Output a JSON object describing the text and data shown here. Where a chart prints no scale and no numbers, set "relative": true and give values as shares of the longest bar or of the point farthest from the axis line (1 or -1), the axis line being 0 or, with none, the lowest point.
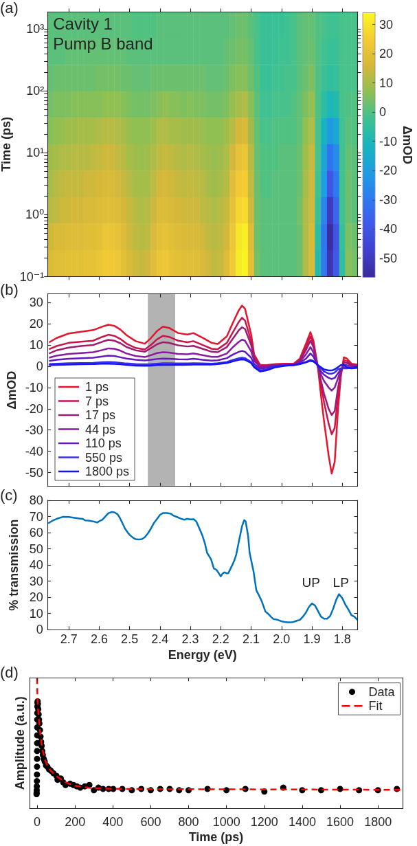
{
  "chart_data": [
    {
      "type": "heatmap",
      "title": "(a)",
      "ylabel": "Time (ps)",
      "clabel": "ΔmOD",
      "annotations": [
        "Cavity 1",
        "Pump B band"
      ],
      "x": [
        2.76,
        2.74,
        2.72,
        2.7,
        2.68,
        2.66,
        2.64,
        2.62,
        2.6,
        2.58,
        2.56,
        2.54,
        2.52,
        2.5,
        2.48,
        2.46,
        2.44,
        2.42,
        2.4,
        2.38,
        2.36,
        2.34,
        2.32,
        2.3,
        2.28,
        2.26,
        2.24,
        2.22,
        2.2,
        2.18,
        2.16,
        2.14,
        2.12,
        2.1,
        2.08,
        2.06,
        2.04,
        2.02,
        2.0,
        1.98,
        1.96,
        1.94,
        1.92,
        1.9,
        1.88,
        1.86,
        1.84,
        1.82,
        1.8,
        1.78,
        1.76
      ],
      "cells": [
        [
          1,
          1,
          1,
          1,
          1,
          1,
          1,
          1,
          1,
          1,
          1,
          1,
          1,
          1,
          0,
          0,
          0,
          0,
          1,
          1,
          1,
          1,
          1,
          1,
          1,
          1,
          1,
          1,
          1,
          1,
          2,
          3,
          3,
          1,
          -1,
          -3,
          -3,
          -3,
          -3,
          -2,
          -1,
          1,
          2,
          2,
          0,
          -1,
          -2,
          -2,
          -1,
          -1,
          -1
        ],
        [
          1,
          1,
          1,
          2,
          2,
          2,
          2,
          2,
          2,
          2,
          2,
          2,
          2,
          1,
          1,
          1,
          1,
          1,
          1,
          1,
          1,
          1,
          1,
          1,
          1,
          1,
          1,
          1,
          1,
          2,
          3,
          4,
          4,
          2,
          -1,
          -3,
          -3,
          -3,
          -2,
          -2,
          -1,
          1,
          2,
          3,
          0,
          -2,
          -3,
          -3,
          -1,
          -1,
          -1
        ],
        [
          2,
          3,
          3,
          3,
          3,
          3,
          3,
          3,
          4,
          4,
          4,
          4,
          3,
          3,
          2,
          2,
          2,
          3,
          3,
          3,
          3,
          3,
          3,
          3,
          3,
          3,
          2,
          2,
          2,
          3,
          5,
          6,
          6,
          3,
          0,
          -3,
          -3,
          -2,
          -2,
          -1,
          -1,
          1,
          3,
          5,
          0,
          -3,
          -5,
          -4,
          -1,
          -1,
          -1
        ],
        [
          4,
          5,
          5,
          5,
          6,
          6,
          6,
          6,
          6,
          7,
          7,
          7,
          6,
          5,
          4,
          4,
          4,
          5,
          6,
          7,
          6,
          6,
          5,
          6,
          5,
          5,
          4,
          4,
          4,
          5,
          8,
          10,
          11,
          6,
          1,
          -2,
          -2,
          -1,
          -1,
          -1,
          0,
          2,
          5,
          8,
          0,
          -6,
          -10,
          -8,
          -1,
          0,
          0
        ],
        [
          6,
          7,
          8,
          9,
          9,
          10,
          10,
          10,
          11,
          12,
          12,
          11,
          10,
          8,
          7,
          7,
          7,
          9,
          11,
          11,
          10,
          10,
          9,
          9,
          9,
          8,
          7,
          7,
          7,
          9,
          12,
          16,
          17,
          9,
          2,
          -1,
          -1,
          0,
          0,
          0,
          0,
          2,
          7,
          11,
          -1,
          -12,
          -21,
          -17,
          -2,
          1,
          0
        ],
        [
          9,
          10,
          11,
          11,
          12,
          12,
          12,
          13,
          14,
          15,
          15,
          14,
          12,
          10,
          9,
          8,
          9,
          11,
          13,
          14,
          13,
          12,
          11,
          12,
          11,
          10,
          9,
          8,
          9,
          11,
          16,
          21,
          22,
          12,
          2,
          0,
          0,
          0,
          1,
          1,
          1,
          3,
          9,
          14,
          -1,
          -17,
          -31,
          -25,
          -2,
          2,
          1
        ],
        [
          10,
          12,
          13,
          14,
          14,
          14,
          15,
          15,
          16,
          17,
          17,
          16,
          14,
          12,
          10,
          10,
          10,
          13,
          16,
          16,
          15,
          14,
          13,
          14,
          13,
          12,
          10,
          9,
          10,
          12,
          19,
          24,
          25,
          13,
          3,
          0,
          0,
          1,
          1,
          1,
          1,
          3,
          10,
          15,
          -2,
          -20,
          -40,
          -30,
          -2,
          3,
          1
        ],
        [
          12,
          13,
          15,
          15,
          16,
          16,
          17,
          17,
          18,
          19,
          19,
          18,
          16,
          14,
          12,
          11,
          12,
          15,
          18,
          18,
          17,
          16,
          15,
          15,
          15,
          13,
          12,
          11,
          12,
          14,
          21,
          27,
          28,
          15,
          3,
          1,
          1,
          1,
          1,
          1,
          1,
          4,
          11,
          15,
          -3,
          -27,
          -50,
          -35,
          -2,
          3,
          1
        ],
        [
          15,
          17,
          17,
          18,
          18,
          18,
          19,
          19,
          20,
          22,
          22,
          21,
          18,
          15,
          13,
          12,
          13,
          17,
          20,
          21,
          19,
          18,
          17,
          17,
          17,
          15,
          13,
          12,
          13,
          16,
          23,
          30,
          32,
          18,
          3,
          1,
          1,
          1,
          1,
          1,
          1,
          3,
          11,
          17,
          -6,
          -30,
          -55,
          -40,
          -4,
          5,
          3
        ],
        [
          18,
          19,
          19,
          20,
          20,
          20,
          21,
          21,
          22,
          24,
          24,
          23,
          20,
          17,
          15,
          14,
          15,
          19,
          22,
          23,
          21,
          20,
          19,
          19,
          19,
          17,
          15,
          13,
          14,
          18,
          24,
          31,
          33,
          20,
          4,
          1,
          1,
          1,
          1,
          1,
          1,
          3,
          11,
          17,
          -8,
          -30,
          -52,
          -38,
          -5,
          6,
          4
        ]
      ],
      "clim": [
        -56.5,
        34
      ],
      "cticks": [
        -50,
        -40,
        -30,
        -20,
        -10,
        0,
        10,
        20,
        30
      ],
      "xlim": [
        2.77,
        1.75
      ],
      "xticks": [
        2.7,
        2.6,
        2.5,
        2.4,
        2.3,
        2.2,
        2.1,
        2.0,
        1.9,
        1.8
      ],
      "ylim": [
        0.1,
        1900
      ],
      "yticks": [
        {
          "value": 0.1,
          "label": "10⁻¹"
        },
        {
          "value": 0.2,
          "label": null
        },
        {
          "value": 0.3,
          "label": null
        },
        {
          "value": 0.4,
          "label": null
        },
        {
          "value": 0.5,
          "label": null
        },
        {
          "value": 0.6,
          "label": null
        },
        {
          "value": 0.7,
          "label": null
        },
        {
          "value": 0.8,
          "label": null
        },
        {
          "value": 0.9,
          "label": null
        },
        {
          "value": 1,
          "label": "10⁰"
        },
        {
          "value": 2,
          "label": null
        },
        {
          "value": 3,
          "label": null
        },
        {
          "value": 4,
          "label": null
        },
        {
          "value": 5,
          "label": null
        },
        {
          "value": 6,
          "label": null
        },
        {
          "value": 7,
          "label": null
        },
        {
          "value": 8,
          "label": null
        },
        {
          "value": 9,
          "label": null
        },
        {
          "value": 10,
          "label": "10¹"
        },
        {
          "value": 20,
          "label": null
        },
        {
          "value": 30,
          "label": null
        },
        {
          "value": 40,
          "label": null
        },
        {
          "value": 50,
          "label": null
        },
        {
          "value": 60,
          "label": null
        },
        {
          "value": 70,
          "label": null
        },
        {
          "value": 80,
          "label": null
        },
        {
          "value": 90,
          "label": null
        },
        {
          "value": 100,
          "label": "10²"
        },
        {
          "value": 200,
          "label": null
        },
        {
          "value": 300,
          "label": null
        },
        {
          "value": 400,
          "label": null
        },
        {
          "value": 500,
          "label": null
        },
        {
          "value": 600,
          "label": null
        },
        {
          "value": 700,
          "label": null
        },
        {
          "value": 800,
          "label": null
        },
        {
          "value": 900,
          "label": null
        },
        {
          "value": 1000,
          "label": "10³"
        }
      ],
      "log": "y",
      "tick_labels": "y"
    },
    {
      "type": "line",
      "title": "(b)",
      "ylabel": "ΔmOD",
      "x": [
        2.765,
        2.74,
        2.7,
        2.66,
        2.62,
        2.59,
        2.57,
        2.55,
        2.53,
        2.51,
        2.48,
        2.45,
        2.43,
        2.41,
        2.39,
        2.37,
        2.34,
        2.31,
        2.29,
        2.26,
        2.23,
        2.21,
        2.18,
        2.16,
        2.14,
        2.13,
        2.12,
        2.1,
        2.09,
        2.07,
        2.05,
        2.02,
        1.99,
        1.96,
        1.94,
        1.92,
        1.905,
        1.895,
        1.88,
        1.87,
        1.86,
        1.845,
        1.835,
        1.825,
        1.815,
        1.805,
        1.795,
        1.785,
        1.77,
        1.75
      ],
      "series": [
        {
          "name": "1 ps",
          "color": "#e3162d",
          "values": [
            11.2,
            13.3,
            15.4,
            16.2,
            17.0,
            18.6,
            19.5,
            19.0,
            17.2,
            14.6,
            11.8,
            10.6,
            13.2,
            16.5,
            18.6,
            18.0,
            15.6,
            14.9,
            15.6,
            13.4,
            11.0,
            10.5,
            14.0,
            20.5,
            26.5,
            28.5,
            27.0,
            15.0,
            5.5,
            0.5,
            0.5,
            1.0,
            1.2,
            1.2,
            3.5,
            10.5,
            16.0,
            12.0,
            -1.0,
            -14,
            -26,
            -42,
            -50.5,
            -45,
            -22,
            -5,
            4.2,
            3.6,
            1.2,
            0.8
          ]
        },
        {
          "name": "7 ps",
          "color": "#c8154c",
          "values": [
            8.0,
            9.5,
            11.0,
            11.5,
            12.0,
            13.8,
            14.8,
            14.3,
            12.8,
            10.6,
            8.6,
            7.9,
            10.0,
            12.6,
            14.3,
            13.8,
            12.0,
            11.3,
            11.8,
            10.0,
            8.2,
            8.0,
            11.0,
            16.0,
            21.0,
            22.8,
            21.5,
            12.0,
            4.5,
            0.3,
            0.3,
            0.8,
            1.0,
            1.0,
            3.0,
            9.0,
            14.0,
            10.5,
            -0.5,
            -9,
            -17,
            -27,
            -32,
            -29,
            -15,
            -4,
            2.8,
            2.5,
            0.8,
            0.5
          ]
        },
        {
          "name": "17 ps",
          "color": "#a01a74",
          "values": [
            6.0,
            7.5,
            8.8,
            9.5,
            10.0,
            11.5,
            12.4,
            12.0,
            10.8,
            9.0,
            7.5,
            6.8,
            8.5,
            10.3,
            11.3,
            11.0,
            9.8,
            9.3,
            9.6,
            8.2,
            6.8,
            6.6,
            9.0,
            13.0,
            17.0,
            18.3,
            17.5,
            10.0,
            3.5,
            0,
            0.2,
            0.6,
            0.8,
            0.8,
            2.5,
            7.5,
            12.0,
            9.0,
            -0.5,
            -7,
            -13,
            -20,
            -23,
            -21,
            -11,
            -3,
            1.8,
            1.5,
            0.5,
            0.3
          ]
        },
        {
          "name": "44 ps",
          "color": "#8a1aa3",
          "values": [
            4.0,
            5.0,
            5.8,
            6.2,
            6.6,
            7.6,
            8.4,
            8.2,
            7.3,
            6.0,
            4.8,
            4.3,
            5.2,
            6.2,
            6.6,
            6.4,
            5.8,
            5.6,
            6.0,
            5.2,
            4.4,
            4.4,
            6.0,
            9.0,
            11.5,
            12.5,
            12.0,
            7.0,
            2.5,
            -0.5,
            -0.2,
            0.4,
            0.6,
            0.6,
            2.0,
            5.5,
            9.0,
            6.5,
            -0.5,
            -4,
            -7,
            -10,
            -11.5,
            -10,
            -6,
            -2,
            0.5,
            0.5,
            0,
            0
          ]
        },
        {
          "name": "110 ps",
          "color": "#6518bf",
          "values": [
            2.5,
            3.0,
            3.5,
            3.8,
            4.0,
            4.6,
            5.0,
            4.8,
            4.2,
            3.6,
            3.0,
            2.7,
            3.0,
            3.4,
            3.6,
            3.5,
            3.3,
            3.2,
            3.5,
            3.0,
            2.6,
            2.8,
            3.8,
            5.5,
            6.8,
            7.2,
            6.8,
            4.0,
            1.0,
            -1.2,
            -0.8,
            0.2,
            0.4,
            0.5,
            1.5,
            3.5,
            6.0,
            4.5,
            0,
            -2.5,
            -4,
            -5.5,
            -6,
            -5.5,
            -3.5,
            -1.5,
            -0.5,
            -0.5,
            -0.5,
            -0.3
          ]
        },
        {
          "name": "550 ps",
          "color": "#3a2ee2",
          "values": [
            1.0,
            1.2,
            1.4,
            1.5,
            1.6,
            1.9,
            2.0,
            1.9,
            1.6,
            1.3,
            1.0,
            0.9,
            1.0,
            1.2,
            1.4,
            1.4,
            1.3,
            1.3,
            1.4,
            1.3,
            1.2,
            1.4,
            2.0,
            3.0,
            3.8,
            4.0,
            3.8,
            2.0,
            0,
            -2.0,
            -1.5,
            0,
            0.3,
            0.5,
            1.0,
            2.0,
            3.0,
            2.5,
            0.3,
            -1.0,
            -2.5,
            -3.5,
            -3.5,
            -3.0,
            -1.5,
            -1.0,
            -1.0,
            -1.0,
            -0.8,
            -0.5
          ]
        },
        {
          "name": "1800 ps",
          "color": "#1414f5",
          "values": [
            0.5,
            0.6,
            0.8,
            0.9,
            1.0,
            1.2,
            1.2,
            1.1,
            0.9,
            0.6,
            0.3,
            0.2,
            0.3,
            0.5,
            0.6,
            0.6,
            0.6,
            0.7,
            0.8,
            0.8,
            0.8,
            1.0,
            1.5,
            2.3,
            3.0,
            3.2,
            3.0,
            1.5,
            -0.5,
            -2.5,
            -2.0,
            -0.5,
            0.2,
            0.5,
            1.0,
            1.8,
            2.5,
            2.2,
            0.5,
            -0.5,
            -1.5,
            -2.0,
            -2.0,
            -1.5,
            -0.5,
            0.5,
            0.8,
            -0.5,
            -1.0,
            -0.8
          ]
        }
      ],
      "bands": [
        {
          "axis": "x",
          "from": 2.44,
          "to": 2.35,
          "color": "#b3b3b3"
        }
      ],
      "xlim": [
        2.77,
        1.75
      ],
      "xticks": [
        2.7,
        2.6,
        2.5,
        2.4,
        2.3,
        2.2,
        2.1,
        2.0,
        1.9,
        1.8
      ],
      "ylim": [
        -56.5,
        34
      ],
      "yticks": [
        -50,
        -40,
        -30,
        -20,
        -10,
        0,
        10,
        20,
        30
      ],
      "legend": "bottom left",
      "tick_labels": "y"
    },
    {
      "type": "line",
      "title": "(c)",
      "xlabel": "Energy (eV)",
      "ylabel": "% transmission",
      "x": [
        2.768,
        2.75,
        2.737,
        2.72,
        2.7,
        2.681,
        2.665,
        2.655,
        2.646,
        2.635,
        2.62,
        2.607,
        2.598,
        2.59,
        2.58,
        2.57,
        2.56,
        2.55,
        2.54,
        2.533,
        2.525,
        2.515,
        2.505,
        2.497,
        2.488,
        2.48,
        2.47,
        2.46,
        2.45,
        2.44,
        2.43,
        2.42,
        2.41,
        2.4,
        2.39,
        2.376,
        2.365,
        2.355,
        2.341,
        2.33,
        2.32,
        2.31,
        2.3,
        2.288,
        2.28,
        2.27,
        2.26,
        2.252,
        2.245,
        2.232,
        2.223,
        2.214,
        2.205,
        2.2,
        2.195,
        2.188,
        2.18,
        2.175,
        2.162,
        2.155,
        2.149,
        2.14,
        2.13,
        2.123,
        2.118,
        2.11,
        2.105,
        2.092,
        2.083,
        2.075,
        2.066,
        2.053,
        2.045,
        2.035,
        2.027,
        2.015,
        2.009,
        2.0,
        1.99,
        1.98,
        1.97,
        1.96,
        1.95,
        1.94,
        1.93,
        1.92,
        1.91,
        1.9,
        1.89,
        1.88,
        1.87,
        1.86,
        1.85,
        1.84,
        1.83,
        1.82,
        1.811,
        1.8,
        1.79,
        1.78,
        1.77,
        1.76,
        1.75
      ],
      "series": [
        {
          "color": "#0072bd",
          "values": [
            65.8,
            67.8,
            68.8,
            69.8,
            69.7,
            69.2,
            68.8,
            68.6,
            67.6,
            67.5,
            67.0,
            66.3,
            67.3,
            68.0,
            70.0,
            72.0,
            72.8,
            72.6,
            71.5,
            69.5,
            66.5,
            62.5,
            59.8,
            58.2,
            56.8,
            56.0,
            55.8,
            56.0,
            57.2,
            59.5,
            62.5,
            66.0,
            68.5,
            71.0,
            72.2,
            72.2,
            71.8,
            70.5,
            69.5,
            68.6,
            68.0,
            68.6,
            68.2,
            68.3,
            66.8,
            62.5,
            58.0,
            53.3,
            47.5,
            43.6,
            38.0,
            37.0,
            34.5,
            33.0,
            34.5,
            35.5,
            34.8,
            35.0,
            40.0,
            43.0,
            46.5,
            55.0,
            64.0,
            67.8,
            67.0,
            58.0,
            47.5,
            35.9,
            24.4,
            21.5,
            18.0,
            11.2,
            10.0,
            8.0,
            6.6,
            6.2,
            5.8,
            5.2,
            4.8,
            4.6,
            4.5,
            4.8,
            5.5,
            6.0,
            8.0,
            10.5,
            14.0,
            16.2,
            15.0,
            11.5,
            8.0,
            6.8,
            6.8,
            8.5,
            13.0,
            18.5,
            22.0,
            19.5,
            15.5,
            12.5,
            9.0,
            8.0,
            6.0
          ]
        }
      ],
      "annotations": [
        "UP",
        "LP"
      ],
      "xlim": [
        2.77,
        1.75
      ],
      "xticks": [
        2.7,
        2.6,
        2.5,
        2.4,
        2.3,
        2.2,
        2.1,
        {
          "value": 2,
          "label": "2.0"
        },
        1.9,
        1.8
      ],
      "ylim": [
        0,
        80
      ],
      "yticks": [
        0,
        10,
        20,
        30,
        40,
        50,
        60,
        70,
        80
      ]
    },
    {
      "type": "scatter",
      "title": "(d)",
      "xlabel": "Time (ps)",
      "ylabel": "Amplitude (a.u.)",
      "relative": true,
      "series": [
        {
          "name": "Data",
          "type": "scatter",
          "color": "#000000",
          "marker": "circle",
          "x": [
            -3,
            -2.5,
            -2,
            -1.5,
            -1,
            -0.7,
            -0.4,
            -0.2,
            0,
            0.2,
            0.4,
            0.6,
            0.8,
            1,
            1.5,
            2,
            3,
            4,
            6,
            8,
            10,
            12,
            15,
            18,
            21,
            24,
            27,
            30,
            35,
            40,
            47,
            54,
            63,
            72,
            86,
            102,
            108,
            125,
            138,
            150,
            174,
            192,
            210,
            228,
            252,
            276,
            300,
            324,
            348,
            378,
            402,
            450,
            500,
            550,
            600,
            650,
            700,
            750,
            800,
            900,
            1000,
            1100,
            1200,
            1300,
            1400,
            1500,
            1600,
            1700,
            1800,
            1900
          ],
          "values": [
            0.11,
            0.12,
            0.14,
            0.17,
            0.21,
            0.26,
            0.32,
            0.38,
            0.44,
            0.5,
            0.56,
            0.62,
            0.68,
            0.73,
            0.78,
            0.81,
            0.82,
            0.8,
            0.76,
            0.72,
            0.68,
            0.65,
            0.6,
            0.55,
            0.51,
            0.48,
            0.44,
            0.41,
            0.38,
            0.36,
            0.33,
            0.32,
            0.3,
            0.29,
            0.27,
            0.25,
            0.22,
            0.23,
            0.2,
            0.18,
            0.19,
            0.18,
            0.17,
            0.16,
            0.17,
            0.18,
            0.14,
            0.16,
            0.15,
            0.15,
            0.15,
            0.15,
            0.14,
            0.15,
            0.14,
            0.15,
            0.15,
            0.14,
            0.14,
            0.15,
            0.14,
            0.15,
            0.13,
            0.16,
            0.14,
            0.14,
            0.15,
            0.14,
            0.14,
            0.15
          ]
        },
        {
          "name": "Fit",
          "type": "line",
          "color": "#ff0000",
          "line_style": "dashed",
          "x": [
            0,
            1,
            3,
            6,
            12,
            18,
            24,
            30,
            40,
            50,
            72,
            100,
            150,
            200,
            250,
            300,
            400,
            600,
            1000,
            1500,
            1930
          ],
          "values": [
            1.0,
            0.9,
            0.8,
            0.74,
            0.64,
            0.56,
            0.49,
            0.44,
            0.38,
            0.34,
            0.29,
            0.25,
            0.2,
            0.175,
            0.163,
            0.156,
            0.151,
            0.149,
            0.147,
            0.145,
            0.143
          ]
        }
      ],
      "xlim": [
        -40,
        1930
      ],
      "xticks": [
        0,
        200,
        400,
        600,
        800,
        1000,
        1200,
        1400,
        1600,
        1800
      ],
      "legend": "top right"
    }
  ]
}
